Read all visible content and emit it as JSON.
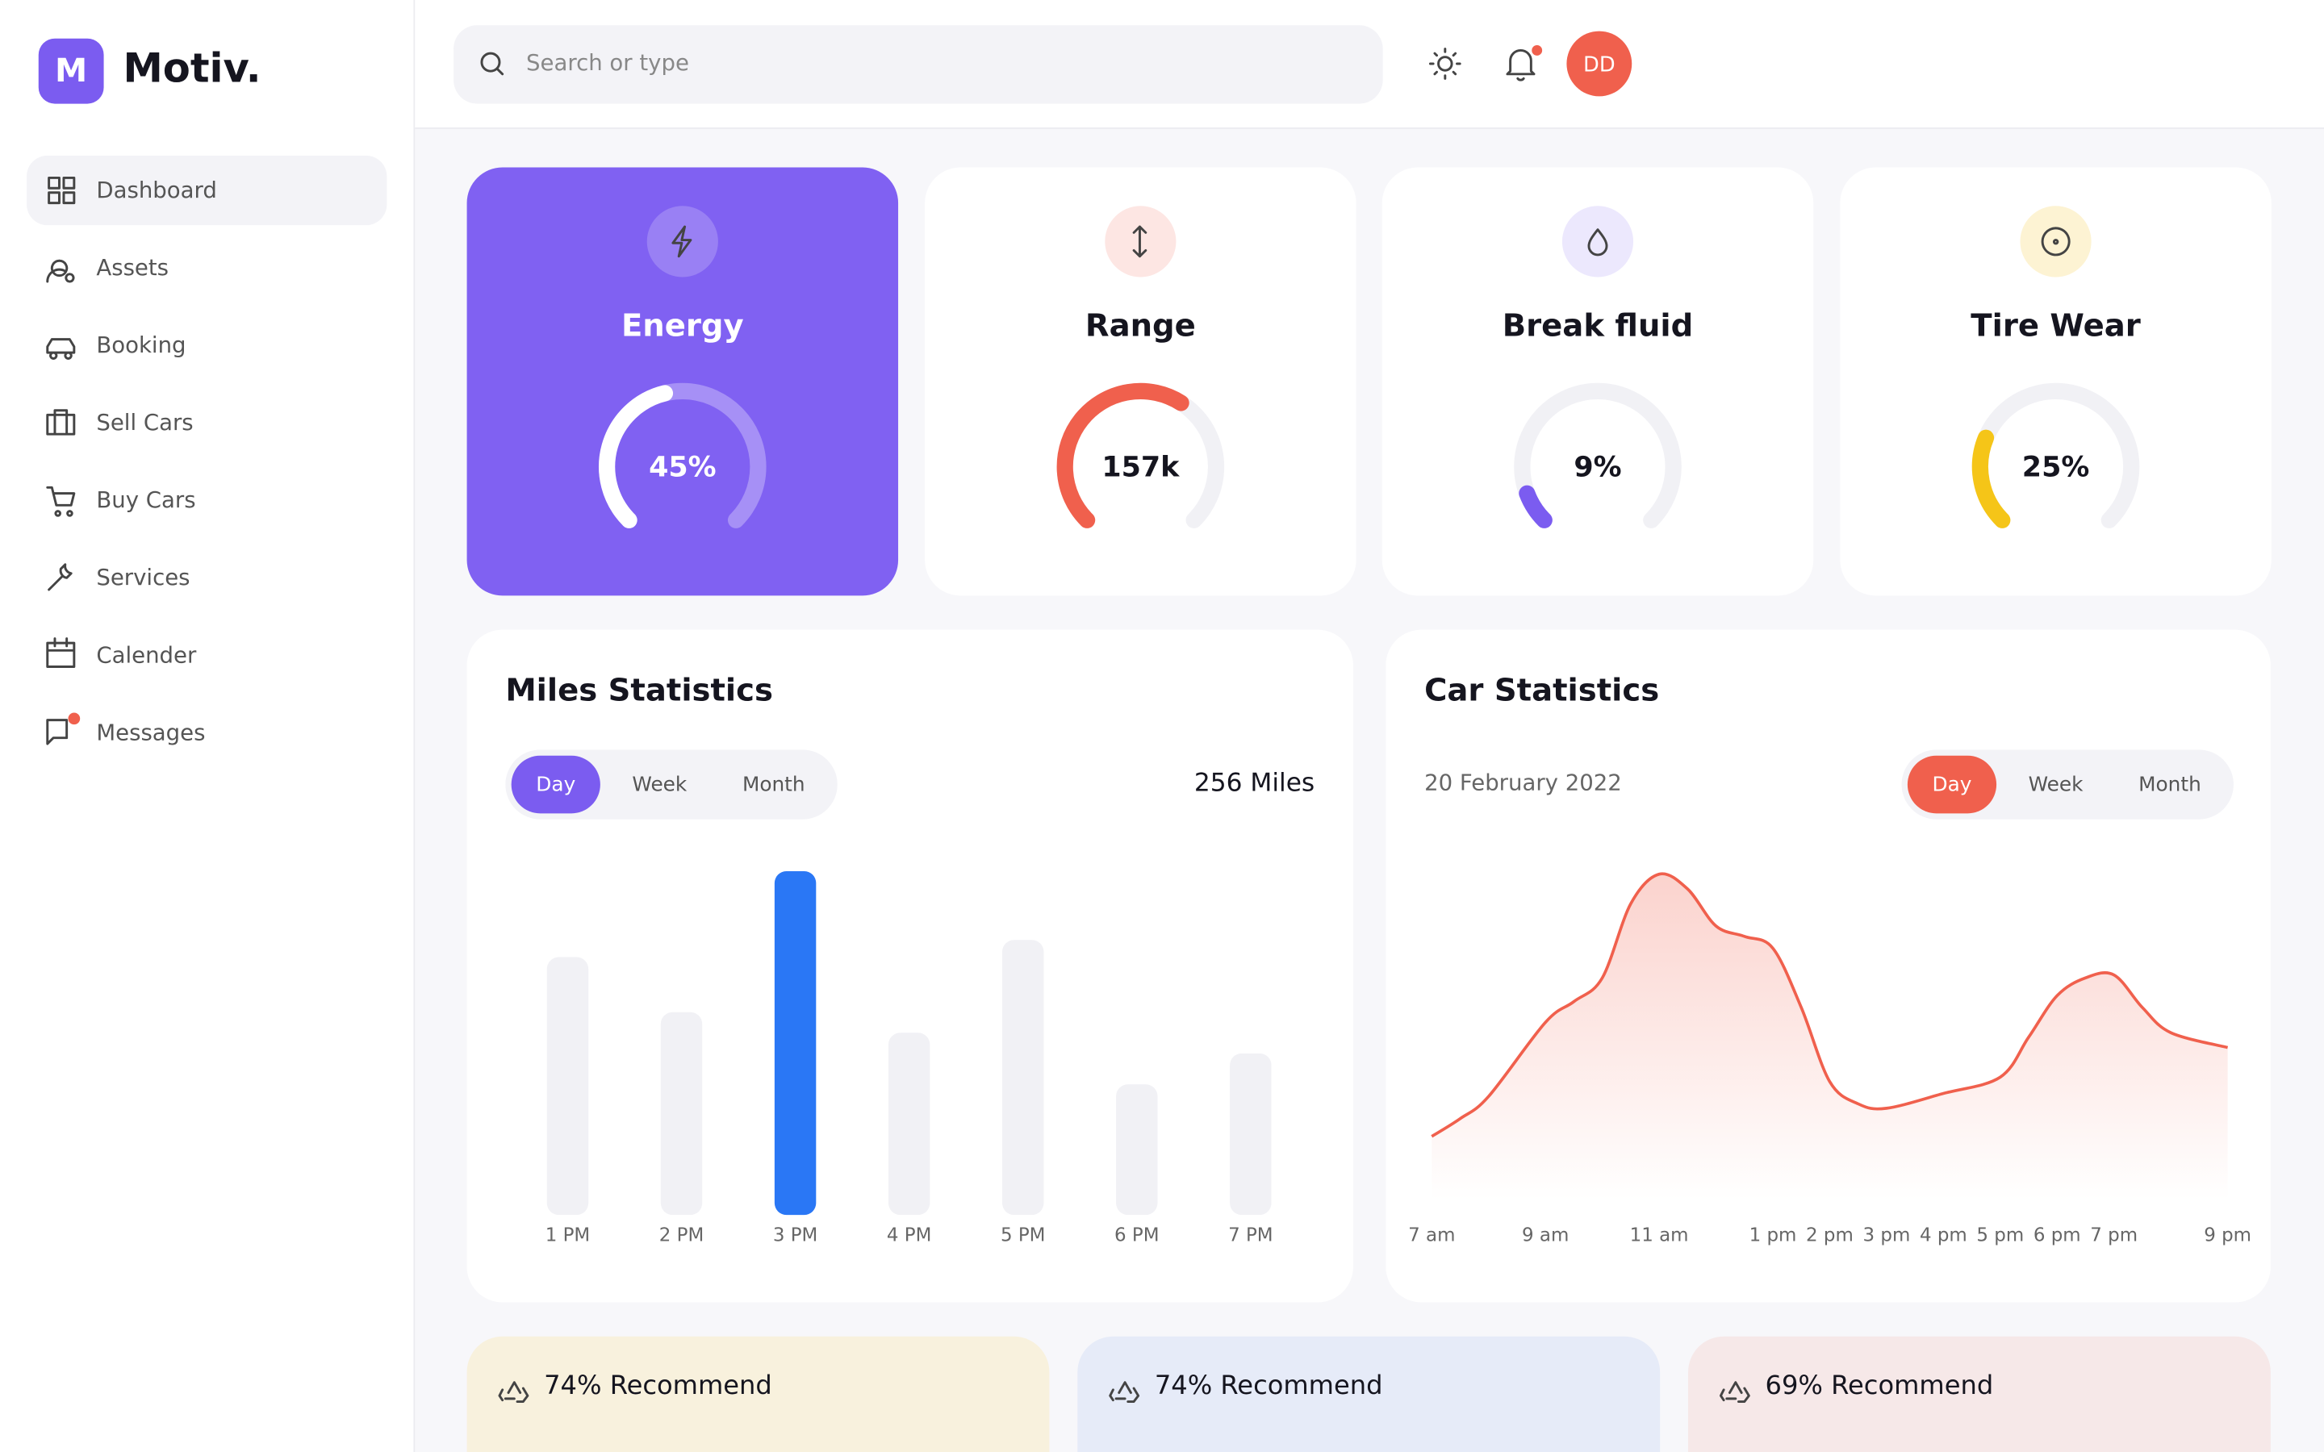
{
  "brand": {
    "name": "Motiv.",
    "logo_letter": "M"
  },
  "header": {
    "search_placeholder": "Search or type",
    "avatar": "DD"
  },
  "nav": {
    "items": [
      "Dashboard",
      "Assets",
      "Booking",
      "Sell Cars",
      "Buy Cars",
      "Services",
      "Calender",
      "Messages"
    ],
    "active": 0
  },
  "cards": [
    {
      "title": "Energy",
      "value": 45,
      "label": "45%",
      "color": "#ffffff"
    },
    {
      "title": "Range",
      "value": 157000,
      "label": "157k",
      "gauge": 62,
      "color": "#f0604d"
    },
    {
      "title": "Break fluid",
      "value": 9,
      "label": "9%",
      "color": "#7b5cf0"
    },
    {
      "title": "Tire Wear",
      "value": 25,
      "label": "25%",
      "color": "#f5c518"
    }
  ],
  "miles": {
    "title": "Miles Statistics",
    "tabs": [
      "Day",
      "Week",
      "Month"
    ],
    "total": "256 Miles",
    "chart_data": {
      "type": "bar",
      "categories": [
        "1 PM",
        "2 PM",
        "3 PM",
        "4 PM",
        "5 PM",
        "6 PM",
        "7 PM"
      ],
      "values": [
        75,
        59,
        100,
        53,
        80,
        38,
        47
      ],
      "highlight": 2,
      "color": "#f1f1f5",
      "highlight_color": "#2a77f5",
      "ylim": [
        0,
        100
      ]
    }
  },
  "car": {
    "title": "Car Statistics",
    "date": "20 February 2022",
    "tabs": [
      "Day",
      "Week",
      "Month"
    ],
    "chart_data": {
      "type": "area",
      "x": [
        7,
        7.5,
        8,
        9,
        9.5,
        10,
        10.5,
        11,
        11.5,
        12,
        12.5,
        13,
        13.5,
        14,
        14.5,
        15,
        16,
        17,
        17.5,
        18,
        18.5,
        19,
        19.5,
        20,
        21
      ],
      "values": [
        43,
        55,
        70,
        120,
        134,
        150,
        200,
        220,
        210,
        185,
        178,
        170,
        130,
        80,
        65,
        62,
        72,
        83,
        110,
        138,
        150,
        152,
        130,
        113,
        103
      ],
      "color": "#f0604d",
      "xlim": [
        7,
        21
      ],
      "ylim": [
        0,
        220
      ],
      "xticks": [
        {
          "value": 7,
          "label": "7 am"
        },
        {
          "value": 9,
          "label": "9 am"
        },
        {
          "value": 11,
          "label": "11 am"
        },
        {
          "value": 13,
          "label": "1 pm"
        },
        {
          "value": 14,
          "label": "2 pm"
        },
        {
          "value": 15,
          "label": "3 pm"
        },
        {
          "value": 16,
          "label": "4 pm"
        },
        {
          "value": 17,
          "label": "5 pm"
        },
        {
          "value": 18,
          "label": "6 pm"
        },
        {
          "value": 19,
          "label": "7 pm"
        },
        {
          "value": 21,
          "label": "9 pm"
        }
      ]
    }
  },
  "recommend": [
    {
      "text": "74% Recommend",
      "color": "#f8f1dd"
    },
    {
      "text": "74% Recommend",
      "color": "#e6ebf8"
    },
    {
      "text": "69% Recommend",
      "color": "#f6e8e8"
    }
  ]
}
